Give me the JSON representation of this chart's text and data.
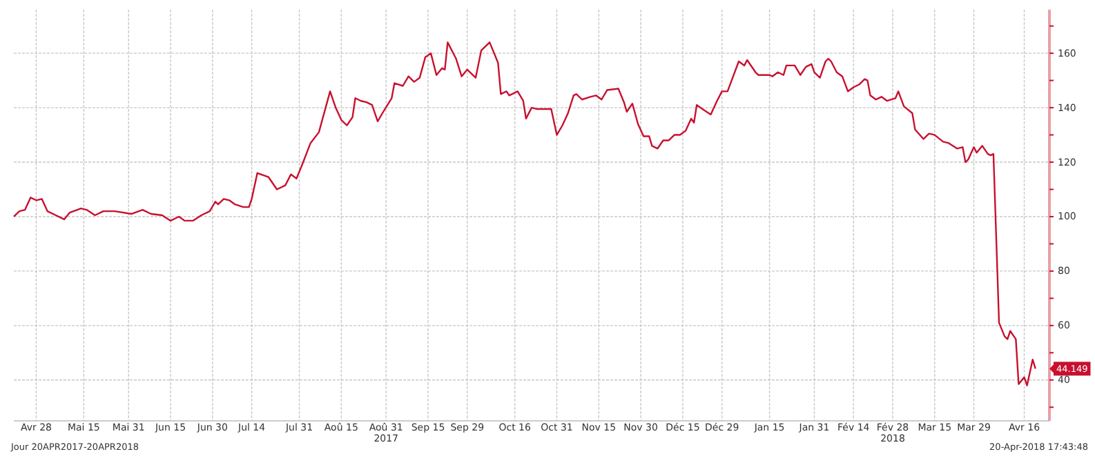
{
  "chart_data": {
    "type": "line",
    "x": [
      "2017-04-20",
      "2017-04-22",
      "2017-04-24",
      "2017-04-26",
      "2017-04-28",
      "2017-04-30",
      "2017-05-02",
      "2017-05-05",
      "2017-05-08",
      "2017-05-10",
      "2017-05-14",
      "2017-05-16",
      "2017-05-19",
      "2017-05-22",
      "2017-05-26",
      "2017-06-01",
      "2017-06-05",
      "2017-06-08",
      "2017-06-12",
      "2017-06-15",
      "2017-06-18",
      "2017-06-20",
      "2017-06-23",
      "2017-06-26",
      "2017-06-29",
      "2017-07-01",
      "2017-07-02",
      "2017-07-04",
      "2017-07-06",
      "2017-07-08",
      "2017-07-11",
      "2017-07-13",
      "2017-07-14",
      "2017-07-16",
      "2017-07-20",
      "2017-07-23",
      "2017-07-26",
      "2017-07-28",
      "2017-07-30",
      "2017-08-01",
      "2017-08-04",
      "2017-08-07",
      "2017-08-11",
      "2017-08-13",
      "2017-08-15",
      "2017-08-17",
      "2017-08-19",
      "2017-08-20",
      "2017-08-22",
      "2017-08-24",
      "2017-08-26",
      "2017-08-28",
      "2017-08-30",
      "2017-09-02",
      "2017-09-03",
      "2017-09-06",
      "2017-09-08",
      "2017-09-10",
      "2017-09-12",
      "2017-09-14",
      "2017-09-16",
      "2017-09-18",
      "2017-09-20",
      "2017-09-21",
      "2017-09-22",
      "2017-09-25",
      "2017-09-27",
      "2017-09-29",
      "2017-10-02",
      "2017-10-04",
      "2017-10-07",
      "2017-10-10",
      "2017-10-11",
      "2017-10-13",
      "2017-10-14",
      "2017-10-17",
      "2017-10-19",
      "2017-10-20",
      "2017-10-22",
      "2017-10-24",
      "2017-10-29",
      "2017-10-31",
      "2017-11-02",
      "2017-11-04",
      "2017-11-06",
      "2017-11-07",
      "2017-11-09",
      "2017-11-12",
      "2017-11-14",
      "2017-11-16",
      "2017-11-18",
      "2017-11-22",
      "2017-11-24",
      "2017-11-25",
      "2017-11-27",
      "2017-11-29",
      "2017-12-01",
      "2017-12-03",
      "2017-12-04",
      "2017-12-06",
      "2017-12-08",
      "2017-12-10",
      "2017-12-12",
      "2017-12-14",
      "2017-12-16",
      "2017-12-18",
      "2017-12-19",
      "2017-12-20",
      "2017-12-22",
      "2017-12-25",
      "2017-12-27",
      "2017-12-29",
      "2017-12-31",
      "2018-01-04",
      "2018-01-06",
      "2018-01-07",
      "2018-01-10",
      "2018-01-11",
      "2018-01-15",
      "2018-01-16",
      "2018-01-18",
      "2018-01-20",
      "2018-01-21",
      "2018-01-24",
      "2018-01-26",
      "2018-01-28",
      "2018-01-30",
      "2018-01-31",
      "2018-02-02",
      "2018-02-04",
      "2018-02-05",
      "2018-02-06",
      "2018-02-08",
      "2018-02-10",
      "2018-02-12",
      "2018-02-14",
      "2018-02-16",
      "2018-02-18",
      "2018-02-19",
      "2018-02-20",
      "2018-02-22",
      "2018-02-24",
      "2018-02-26",
      "2018-03-01",
      "2018-03-02",
      "2018-03-04",
      "2018-03-07",
      "2018-03-08",
      "2018-03-11",
      "2018-03-13",
      "2018-03-15",
      "2018-03-18",
      "2018-03-20",
      "2018-03-23",
      "2018-03-25",
      "2018-03-26",
      "2018-03-27",
      "2018-03-29",
      "2018-03-30",
      "2018-04-01",
      "2018-04-03",
      "2018-04-04",
      "2018-04-05",
      "2018-04-07",
      "2018-04-09",
      "2018-04-10",
      "2018-04-11",
      "2018-04-13",
      "2018-04-14",
      "2018-04-16",
      "2018-04-17",
      "2018-04-19",
      "2018-04-20"
    ],
    "series": [
      {
        "color": "#c8102e",
        "values": [
          100,
          102,
          102.5,
          107,
          106,
          106.5,
          102,
          100.5,
          99,
          101.5,
          103,
          102.5,
          100.5,
          102,
          102,
          101,
          102.5,
          101,
          100.5,
          98.5,
          100,
          98.5,
          98.5,
          100.5,
          102,
          105.5,
          104.5,
          106.5,
          106,
          104.5,
          103.5,
          103.5,
          106.5,
          116,
          114.5,
          110,
          111.5,
          115.5,
          114,
          119,
          127,
          131,
          146,
          140,
          135.5,
          133.5,
          136.5,
          143.5,
          142.5,
          142,
          141,
          135,
          138.5,
          143.5,
          149,
          148,
          151.5,
          149.5,
          151,
          158.5,
          160,
          152,
          154.5,
          154,
          164,
          158,
          151.5,
          154,
          151,
          161,
          164,
          156.5,
          145,
          146,
          144.5,
          146,
          142.5,
          136,
          140,
          139.5,
          139.5,
          130,
          133.5,
          138,
          144.5,
          145,
          143,
          144,
          144.5,
          143,
          146.5,
          147,
          142,
          138.5,
          141.5,
          134,
          129.5,
          129.5,
          126,
          125,
          128,
          128,
          130,
          130,
          131.5,
          136,
          134.5,
          141,
          139.5,
          137.5,
          142,
          146,
          146,
          157,
          155.5,
          157.5,
          153,
          152,
          152,
          151.5,
          153,
          152,
          155.5,
          155.5,
          152,
          155,
          156,
          153,
          151,
          157,
          158,
          157,
          153,
          151.5,
          146,
          147.5,
          148.5,
          150.5,
          150,
          144.5,
          143,
          144,
          142.5,
          143.5,
          146,
          140.5,
          138,
          132,
          128.5,
          130.5,
          130,
          127.5,
          127,
          125,
          125.5,
          120,
          121,
          125.5,
          123.5,
          126,
          123,
          122.5,
          123,
          61,
          56,
          55,
          58,
          55,
          38.5,
          41,
          38,
          47.5,
          44.149
        ]
      }
    ],
    "xlim": [
      "2017-04-20",
      "2018-04-25"
    ],
    "xticks": [
      {
        "value": "2017-04-28",
        "label": "Avr 28"
      },
      {
        "value": "2017-05-15",
        "label": "Mai 15"
      },
      {
        "value": "2017-05-31",
        "label": "Mai 31"
      },
      {
        "value": "2017-06-15",
        "label": "Jun 15"
      },
      {
        "value": "2017-06-30",
        "label": "Jun 30"
      },
      {
        "value": "2017-07-14",
        "label": "Jul 14"
      },
      {
        "value": "2017-07-31",
        "label": "Jul 31"
      },
      {
        "value": "2017-08-15",
        "label": "Aoû 15"
      },
      {
        "value": "2017-08-31",
        "label": "Aoû 31\n2017"
      },
      {
        "value": "2017-09-15",
        "label": "Sep 15"
      },
      {
        "value": "2017-09-29",
        "label": "Sep 29"
      },
      {
        "value": "2017-10-16",
        "label": "Oct 16"
      },
      {
        "value": "2017-10-31",
        "label": "Oct 31"
      },
      {
        "value": "2017-11-15",
        "label": "Nov 15"
      },
      {
        "value": "2017-11-30",
        "label": "Nov 30"
      },
      {
        "value": "2017-12-15",
        "label": "Déc 15"
      },
      {
        "value": "2017-12-29",
        "label": "Déc 29"
      },
      {
        "value": "2018-01-15",
        "label": "Jan 15"
      },
      {
        "value": "2018-01-31",
        "label": "Jan 31"
      },
      {
        "value": "2018-02-14",
        "label": "Fév 14"
      },
      {
        "value": "2018-02-28",
        "label": "Fév 28\n2018"
      },
      {
        "value": "2018-03-15",
        "label": "Mar 15"
      },
      {
        "value": "2018-03-29",
        "label": "Mar 29"
      },
      {
        "value": "2018-04-16",
        "label": "Avr 16"
      }
    ],
    "ylim": [
      25,
      176
    ],
    "yticks": [
      {
        "value": 30,
        "label": null
      },
      40,
      {
        "value": 50,
        "label": null
      },
      60,
      {
        "value": 70,
        "label": null
      },
      80,
      {
        "value": 90,
        "label": null
      },
      100,
      {
        "value": 110,
        "label": null
      },
      120,
      {
        "value": 130,
        "label": null
      },
      140,
      {
        "value": 150,
        "label": null
      },
      160,
      {
        "value": 170,
        "label": null
      }
    ],
    "grid": true,
    "annotations": [
      {
        "text": "44.149",
        "x": "2018-04-20",
        "y": 44.149
      },
      "Jour 20APR2017-20APR2018",
      "20-Apr-2018 17:43:48"
    ]
  }
}
